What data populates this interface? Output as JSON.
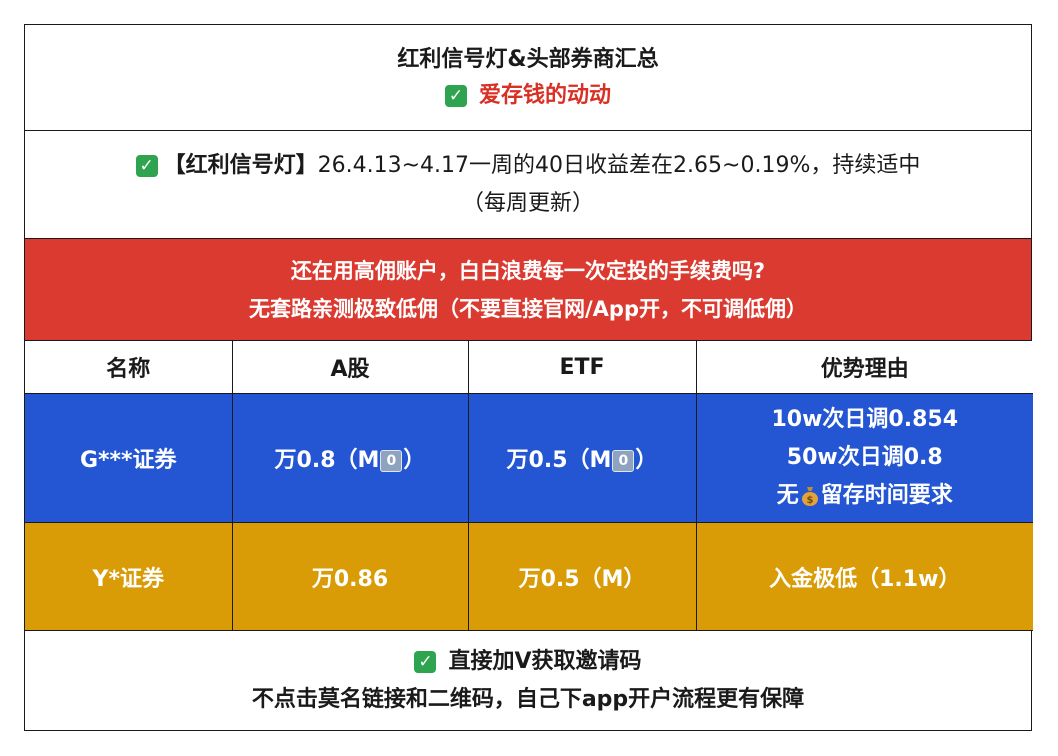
{
  "header": {
    "title": "红利信号灯&头部券商汇总",
    "subtitle": "爱存钱的动动",
    "subtitle_icon": "check-mark-icon"
  },
  "signal": {
    "icon": "check-mark-icon",
    "lead": "【红利信号灯】",
    "text": "26.4.13~4.17一周的40日收益差在2.65~0.19%，持续适中",
    "note": "（每周更新）"
  },
  "promo": {
    "line1": "还在用高佣账户，白白浪费每一次定投的手续费吗?",
    "line2": "无套路亲测极致低佣（不要直接官网/App开，不可调低佣）",
    "background": "#db3a31"
  },
  "table": {
    "headers": [
      "名称",
      "A股",
      "ETF",
      "优势理由"
    ],
    "rows": [
      {
        "name": "G***证券",
        "a_share_prefix": "万0.8（M",
        "a_share_suffix": "）",
        "etf_prefix": "万0.5（M",
        "etf_suffix": "）",
        "m0_glyph": "0",
        "reason_lines": [
          "10w次日调0.854",
          "50w次日调0.8"
        ],
        "reason_bag_prefix": "无",
        "reason_bag_suffix": "留存时间要求",
        "background": "#2456d3"
      },
      {
        "name": "Y*证券",
        "a_share": "万0.86",
        "etf": "万0.5（M）",
        "reason": "入金极低（1.1w）",
        "background": "#d99c07"
      }
    ]
  },
  "footer": {
    "icon": "check-mark-icon",
    "line1": "直接加V获取邀请码",
    "line2": "不点击莫名链接和二维码，自己下app开户流程更有保障"
  }
}
